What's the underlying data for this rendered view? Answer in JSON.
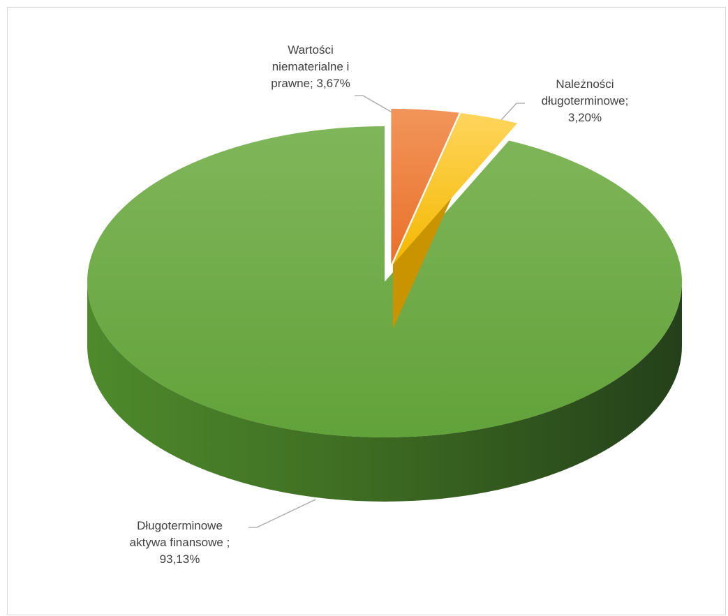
{
  "chart_data": {
    "type": "pie",
    "style": "3d-exploded",
    "slices": [
      {
        "name": "Wartości niematerialne i prawne",
        "value": 3.67,
        "label_lines": [
          "Wartości",
          "niematerialne i",
          "prawne; 3,67%"
        ],
        "color": "#ED7D31"
      },
      {
        "name": "Należności długoterminowe",
        "value": 3.2,
        "label_lines": [
          "Należności",
          "długoterminowe;",
          "3,20%"
        ],
        "color": "#FFC000"
      },
      {
        "name": "Długoterminowe aktywa finansowe",
        "value": 93.13,
        "label_lines": [
          "Długoterminowe",
          "aktywa finansowe ;",
          "93,13%"
        ],
        "color": "#70AD47"
      }
    ]
  }
}
